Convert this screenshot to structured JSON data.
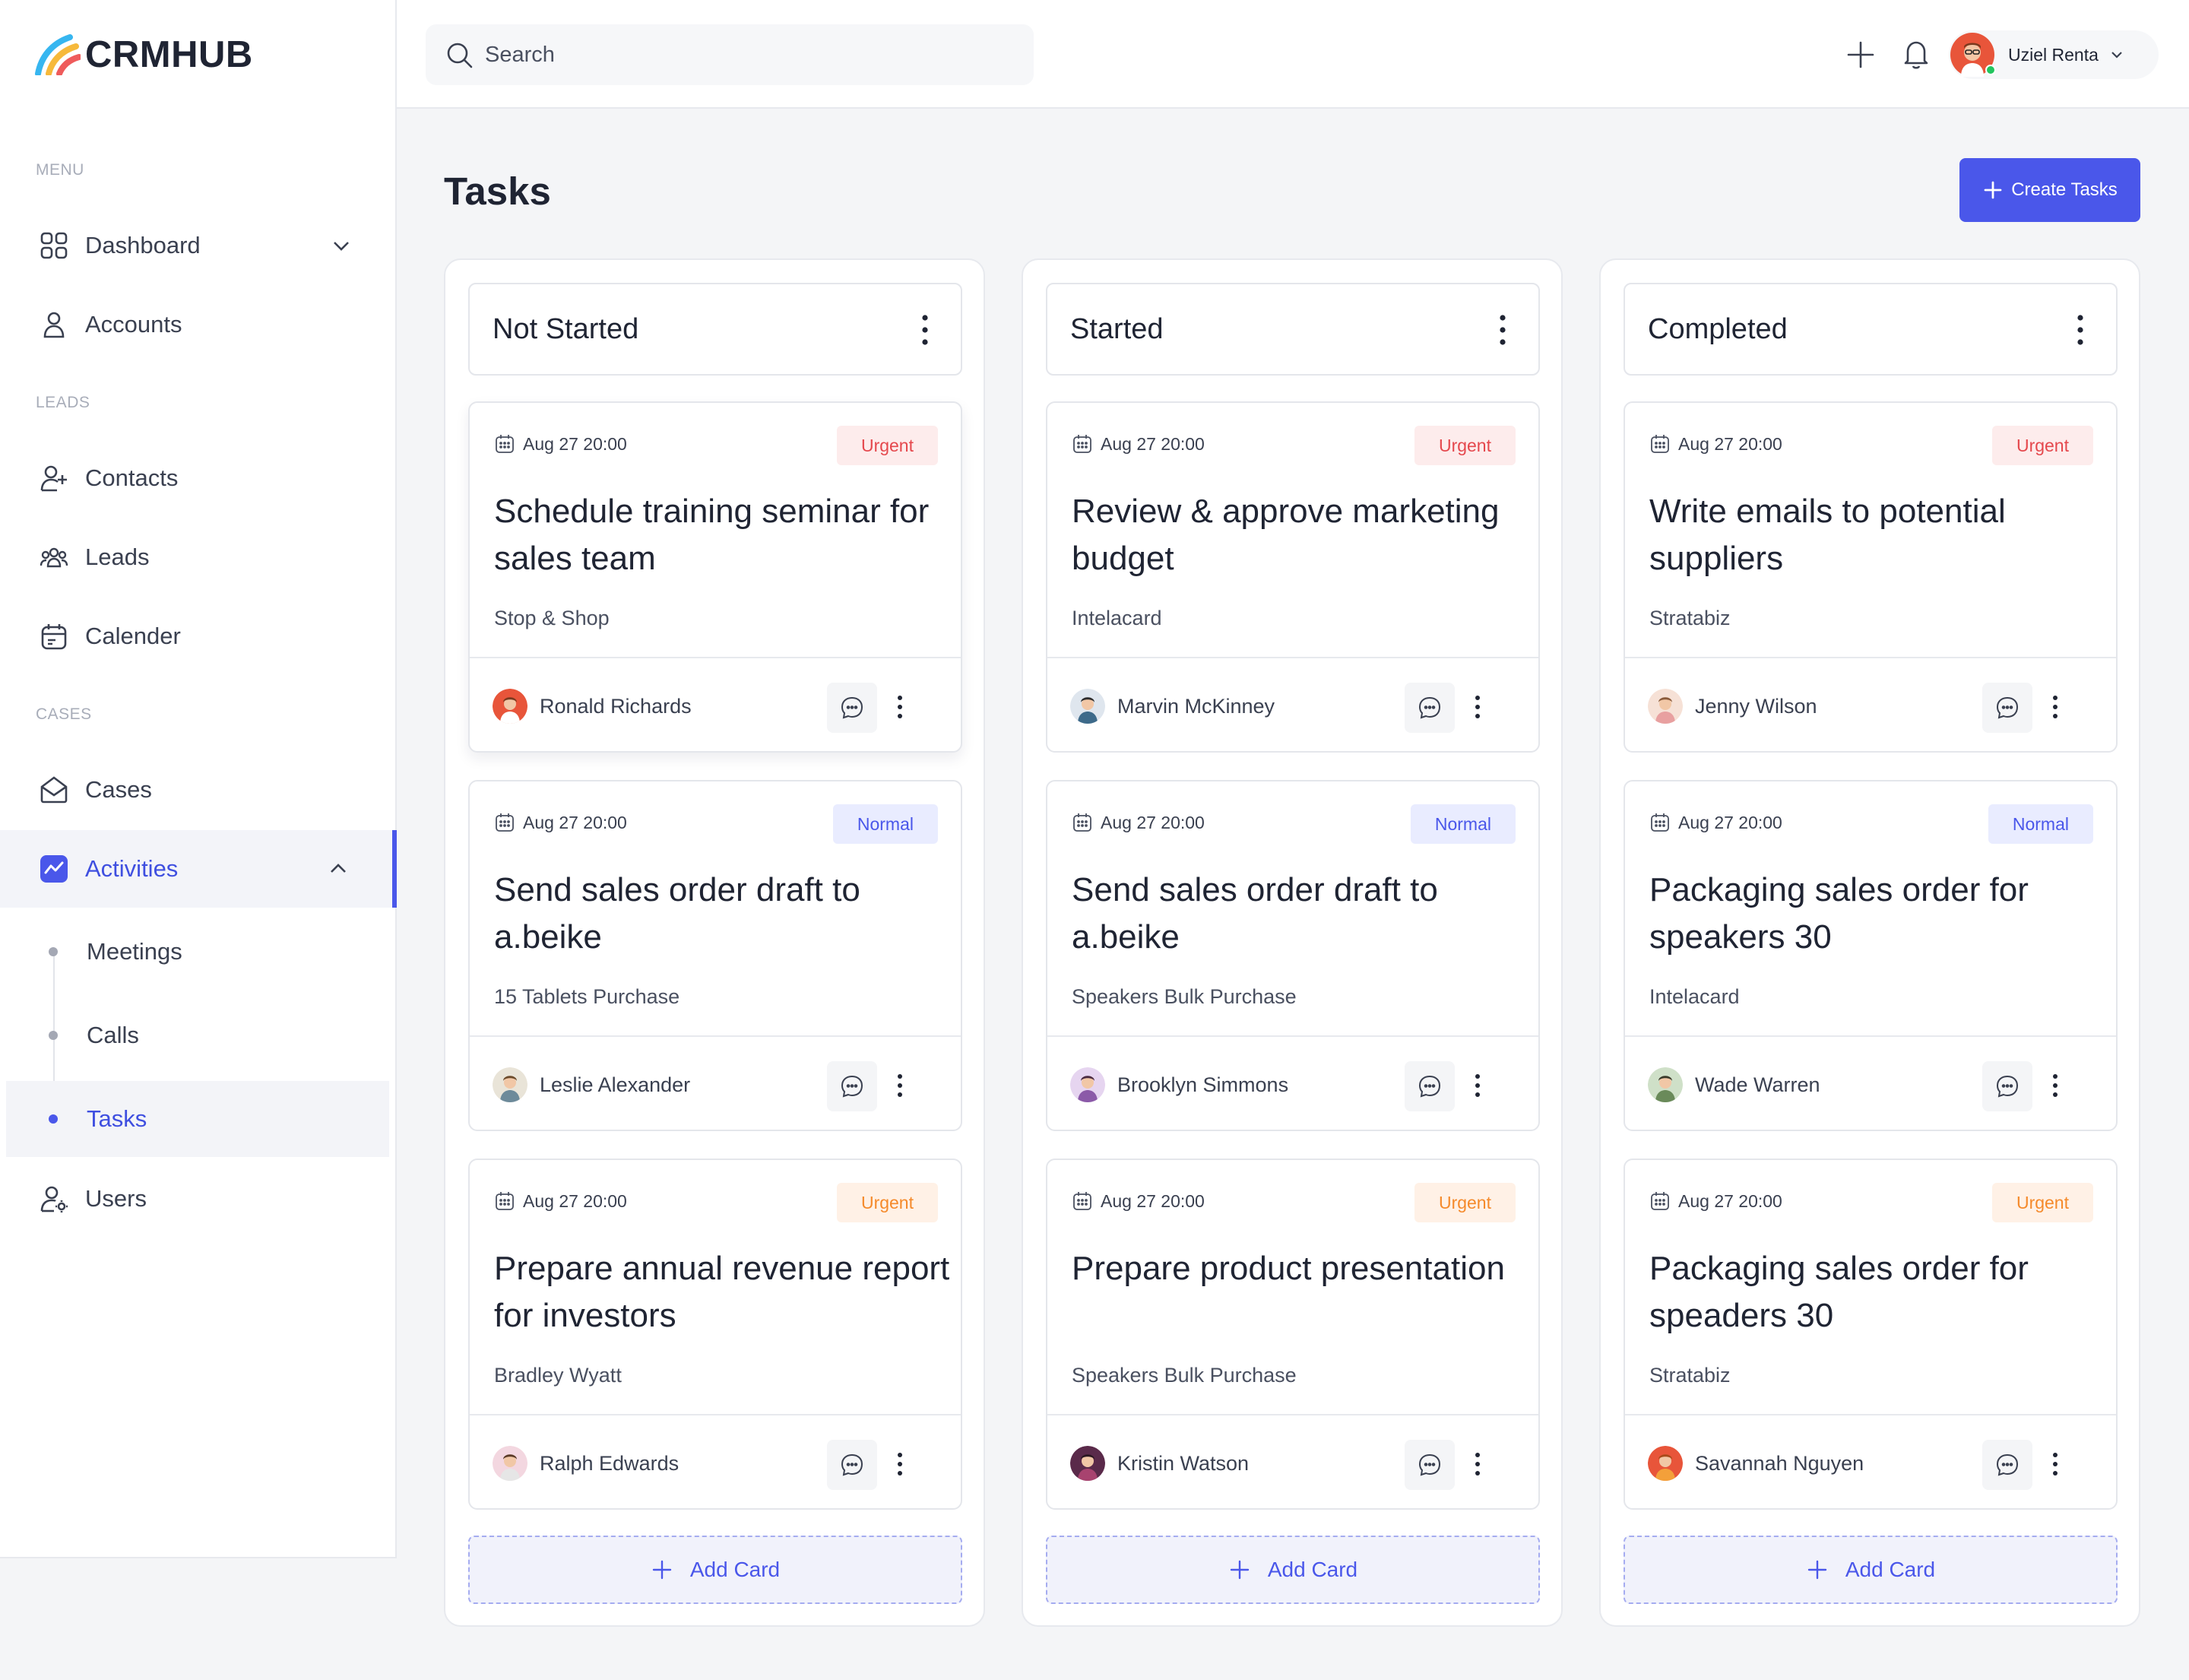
{
  "brand": {
    "name": "CRMHUB"
  },
  "sidebar": {
    "sections": {
      "menu": "MENU",
      "leads": "LEADS",
      "cases": "CASES"
    },
    "items": {
      "dashboard": "Dashboard",
      "accounts": "Accounts",
      "contacts": "Contacts",
      "leads": "Leads",
      "calender": "Calender",
      "cases": "Cases",
      "activities": "Activities",
      "users": "Users"
    },
    "sub_items": {
      "meetings": "Meetings",
      "calls": "Calls",
      "tasks": "Tasks"
    }
  },
  "topbar": {
    "search_placeholder": "Search",
    "user_name": "Uziel Renta"
  },
  "main": {
    "title": "Tasks",
    "create_button": "Create Tasks",
    "add_card_label": "Add Card"
  },
  "columns": [
    {
      "title": "Not Started",
      "cards": [
        {
          "date": "Aug 27 20:00",
          "priority": "Urgent",
          "title": "Schedule training seminar for sales team",
          "subtitle": "Stop & Shop",
          "assignee": "Ronald Richards"
        },
        {
          "date": "Aug 27 20:00",
          "priority": "Normal",
          "title": "Send sales order draft to a.beike",
          "subtitle": "15 Tablets Purchase",
          "assignee": "Leslie Alexander"
        },
        {
          "date": "Aug 27 20:00",
          "priority": "Urgent",
          "title": "Prepare annual revenue report for investors",
          "subtitle": "Bradley Wyatt",
          "assignee": "Ralph Edwards"
        }
      ]
    },
    {
      "title": "Started",
      "cards": [
        {
          "date": "Aug 27 20:00",
          "priority": "Urgent",
          "title": "Review & approve marketing budget",
          "subtitle": "Intelacard",
          "assignee": "Marvin McKinney"
        },
        {
          "date": "Aug 27 20:00",
          "priority": "Normal",
          "title": "Send sales order draft to a.beike",
          "subtitle": "Speakers Bulk Purchase",
          "assignee": "Brooklyn Simmons"
        },
        {
          "date": "Aug 27 20:00",
          "priority": "Urgent",
          "title": "Prepare product presentation",
          "subtitle": "Speakers Bulk Purchase",
          "assignee": "Kristin Watson"
        }
      ]
    },
    {
      "title": "Completed",
      "cards": [
        {
          "date": "Aug 27 20:00",
          "priority": "Urgent",
          "title": "Write emails to potential suppliers",
          "subtitle": "Stratabiz",
          "assignee": "Jenny Wilson"
        },
        {
          "date": "Aug 27 20:00",
          "priority": "Normal",
          "title": "Packaging sales order for speakers 30",
          "subtitle": "Intelacard",
          "assignee": "Wade Warren"
        },
        {
          "date": "Aug 27 20:00",
          "priority": "Urgent",
          "title": "Packaging sales order for speaders 30",
          "subtitle": "Stratabiz",
          "assignee": "Savannah Nguyen"
        }
      ]
    }
  ],
  "colors": {
    "accent": "#4a57ea",
    "urgent_red": "#e5484d",
    "urgent_orange": "#f58a2b",
    "normal": "#4a57ea"
  }
}
